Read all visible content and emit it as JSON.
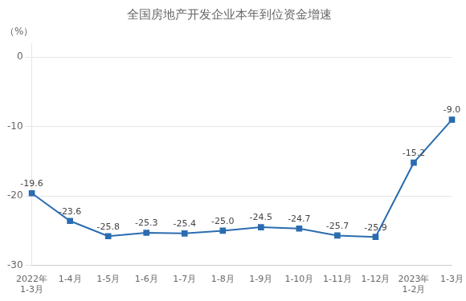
{
  "chart_data": {
    "type": "line",
    "title": "全国房地产开发企业本年到位资金增速",
    "ylabel": "（%）",
    "categories": [
      "2022年\n1-3月",
      "1-4月",
      "1-5月",
      "1-6月",
      "1-7月",
      "1-8月",
      "1-9月",
      "1-10月",
      "1-11月",
      "1-12月",
      "2023年\n1-2月",
      "1-3月"
    ],
    "values": [
      -19.6,
      -23.6,
      -25.8,
      -25.3,
      -25.4,
      -25.0,
      -24.5,
      -24.7,
      -25.7,
      -25.9,
      -15.2,
      -9.0
    ],
    "value_labels": [
      "-19.6",
      "-23.6",
      "-25.8",
      "-25.3",
      "-25.4",
      "-25.0",
      "-24.5",
      "-24.7",
      "-25.7",
      "-25.9",
      "-15.2",
      "-9.0"
    ],
    "color": "#2b6cb0",
    "marker": "square",
    "ylim": [
      -30,
      2
    ],
    "yticks": [
      0,
      -10,
      -20,
      -30
    ],
    "grid": "y",
    "data_labels": true
  }
}
